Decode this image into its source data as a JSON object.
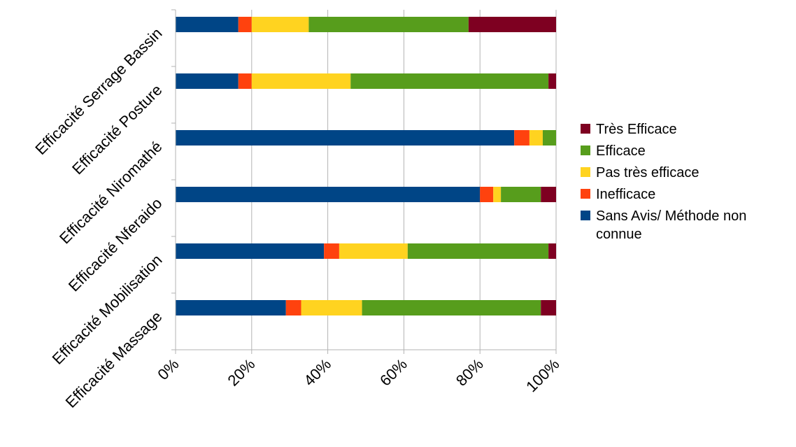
{
  "chart_data": {
    "type": "bar",
    "orientation": "horizontal",
    "stacked": "percent",
    "title": "",
    "xlabel": "",
    "ylabel": "",
    "xlim": [
      0,
      100
    ],
    "grid": true,
    "legend_position": "right",
    "x_ticks": [
      "0%",
      "20%",
      "40%",
      "60%",
      "80%",
      "100%"
    ],
    "categories": [
      "Efficacité Serrage Bassin",
      "Efficacité Posture",
      "Efficacité Niromathé",
      "Efficacité Nferaido",
      "Efficacité Mobilisation",
      "Efficacité Massage"
    ],
    "series": [
      {
        "name": "Sans Avis/ Méthode non connue",
        "color": "#004586",
        "values": [
          16.5,
          16.5,
          89,
          80,
          39,
          29
        ]
      },
      {
        "name": "Inefficace",
        "color": "#ff420e",
        "values": [
          3.5,
          3.5,
          4,
          3.5,
          4,
          4
        ]
      },
      {
        "name": "Pas très efficace",
        "color": "#ffd320",
        "values": [
          15,
          26,
          3.5,
          2,
          18,
          16
        ]
      },
      {
        "name": "Efficace",
        "color": "#579d1c",
        "values": [
          42,
          52,
          3.5,
          10.5,
          37,
          47
        ]
      },
      {
        "name": "Très Efficace",
        "color": "#7e0021",
        "values": [
          23,
          2,
          0,
          4,
          2,
          4
        ]
      }
    ],
    "legend_lines": [
      [
        "Très Efficace"
      ],
      [
        "Efficace"
      ],
      [
        "Pas très efficace"
      ],
      [
        "Inefficace"
      ],
      [
        "Sans Avis/ Méthode non",
        "connue"
      ]
    ]
  }
}
